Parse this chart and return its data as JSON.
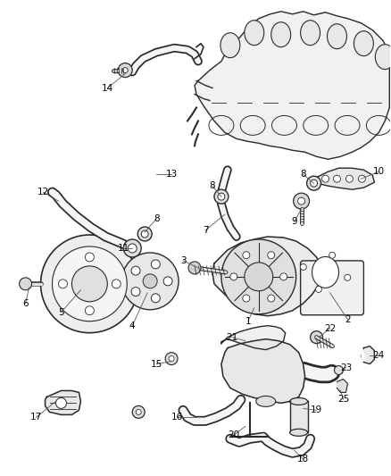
{
  "bg": "#ffffff",
  "lc": "#2a2a2a",
  "fig_w": 4.38,
  "fig_h": 5.33,
  "dpi": 100
}
